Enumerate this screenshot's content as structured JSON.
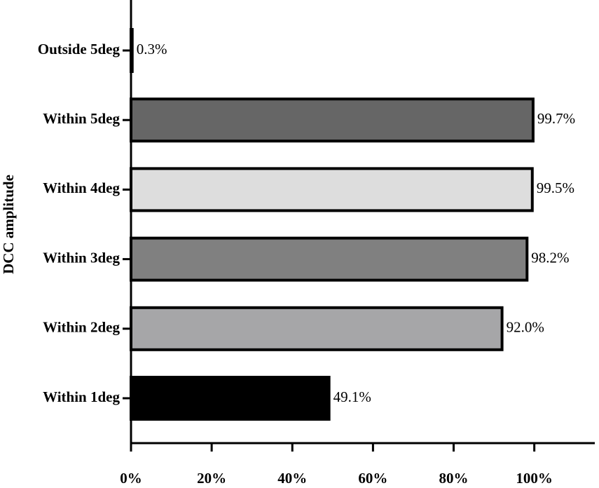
{
  "chart_data": {
    "type": "barh",
    "y_label": "DCC amplitude",
    "categories": [
      "Outside 5deg",
      "Within 5deg",
      "Within 4deg",
      "Within 3deg",
      "Within 2deg",
      "Within 1deg"
    ],
    "values": [
      0.3,
      99.7,
      99.5,
      98.2,
      92.0,
      49.1
    ],
    "value_labels": [
      "0.3%",
      "99.7%",
      "99.5%",
      "98.2%",
      "92.0%",
      "49.1%"
    ],
    "colors": [
      "#ffffff",
      "#666666",
      "#dddddd",
      "#808080",
      "#a6a6a8",
      "#000000"
    ],
    "xlim": [
      0,
      115
    ],
    "xticks": [
      {
        "value": 0,
        "label": "0%"
      },
      {
        "value": 20,
        "label": "20%"
      },
      {
        "value": 40,
        "label": "40%"
      },
      {
        "value": 60,
        "label": "60%"
      },
      {
        "value": 80,
        "label": "80%"
      },
      {
        "value": 100,
        "label": "100%"
      }
    ],
    "grid": false
  }
}
